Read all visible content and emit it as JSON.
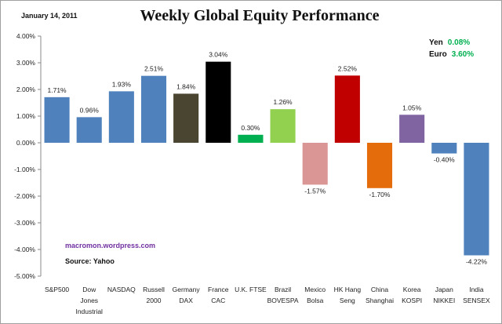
{
  "date": "January 14, 2011",
  "currency_box": [
    {
      "label": "Yen",
      "value": "0.08%"
    },
    {
      "label": "Euro",
      "value": "3.60%"
    }
  ],
  "watermark": "macromon.wordpress.com",
  "source": "Source:  Yahoo",
  "chart_data": {
    "type": "bar",
    "title": "Weekly Global Equity Performance",
    "xlabel": "",
    "ylabel": "",
    "ylim": [
      -5,
      4
    ],
    "yticks": [
      4,
      3,
      2,
      1,
      0,
      -1,
      -2,
      -3,
      -4,
      -5
    ],
    "ytick_labels": [
      "4.00%",
      "3.00%",
      "2.00%",
      "1.00%",
      "0.00%",
      "-1.00%",
      "-2.00%",
      "-3.00%",
      "-4.00%",
      "-5.00%"
    ],
    "grid": false,
    "categories": [
      [
        "S&P500"
      ],
      [
        "Dow",
        "Jones",
        "Industrial"
      ],
      [
        "NASDAQ"
      ],
      [
        "Russell",
        "2000"
      ],
      [
        "Germany",
        "DAX"
      ],
      [
        "France",
        "CAC"
      ],
      [
        "U.K. FTSE"
      ],
      [
        "Brazil",
        "BOVESPA"
      ],
      [
        "Mexico",
        "Bolsa"
      ],
      [
        "HK Hang",
        "Seng"
      ],
      [
        "China",
        "Shanghai"
      ],
      [
        "Korea",
        "KOSPI"
      ],
      [
        "Japan",
        "NIKKEI"
      ],
      [
        "India",
        "SENSEX"
      ]
    ],
    "values": [
      1.71,
      0.96,
      1.93,
      2.51,
      1.84,
      3.04,
      0.3,
      1.26,
      -1.57,
      2.52,
      -1.7,
      1.05,
      -0.4,
      -4.22
    ],
    "data_labels": [
      "1.71%",
      "0.96%",
      "1.93%",
      "2.51%",
      "1.84%",
      "3.04%",
      "0.30%",
      "1.26%",
      "-1.57%",
      "2.52%",
      "-1.70%",
      "1.05%",
      "-0.40%",
      "-4.22%"
    ],
    "colors": [
      "#4f81bd",
      "#4f81bd",
      "#4f81bd",
      "#4f81bd",
      "#4a4530",
      "#000000",
      "#00b050",
      "#92d050",
      "#d99694",
      "#c00000",
      "#e46c0a",
      "#8064a2",
      "#4f81bd",
      "#4f81bd"
    ]
  }
}
